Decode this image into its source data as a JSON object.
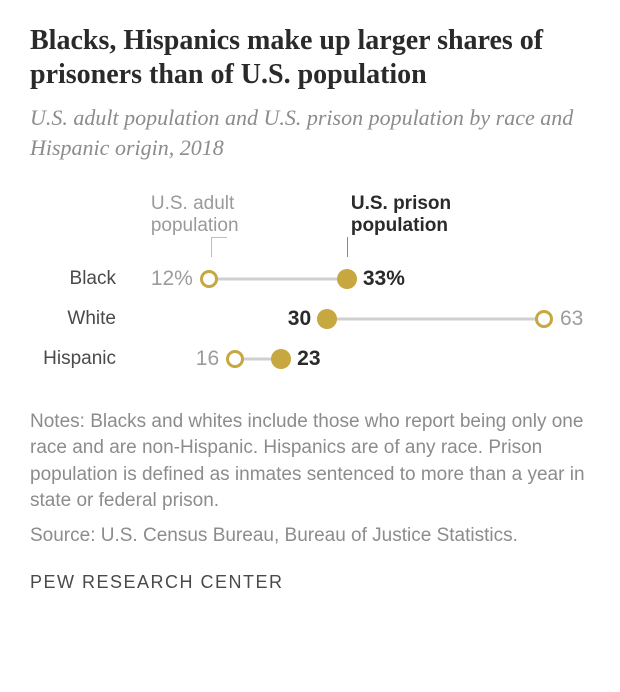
{
  "title": "Blacks, Hispanics make up larger shares of prisoners than of U.S. population",
  "subtitle": "U.S. adult population and U.S. prison population by race and Hispanic origin, 2018",
  "legend": {
    "adult": "U.S. adult\npopulation",
    "prison": "U.S. prison\npopulation"
  },
  "chart": {
    "type": "dumbbell",
    "domain": [
      0,
      70
    ],
    "categories": [
      "Black",
      "White",
      "Hispanic"
    ],
    "series": {
      "adult": {
        "values": [
          12,
          63,
          16
        ],
        "color": "#c7a740",
        "style": "open"
      },
      "prison": {
        "values": [
          33,
          30,
          23
        ],
        "color": "#c7a740",
        "style": "filled"
      }
    },
    "connector_color": "#d0d0d0",
    "unit_first_row": "%",
    "label_fontsize": 19,
    "value_fontsize": 21,
    "adult_value_color": "#9c9c9c",
    "prison_value_color": "#2a2a2a",
    "prison_value_weight": "bold",
    "dot_radius": 10,
    "open_stroke": 3
  },
  "title_fontsize": 28,
  "subtitle_fontsize": 22,
  "notes_fontsize": 19,
  "footer_fontsize": 18,
  "notes": "Notes: Blacks and whites include those who report being only one race and are non-Hispanic. Hispanics are of any race. Prison population is defined as inmates sentenced to more than a year in state or federal prison.",
  "source": "Source: U.S. Census Bureau, Bureau of Justice Statistics.",
  "footer": "PEW RESEARCH CENTER"
}
